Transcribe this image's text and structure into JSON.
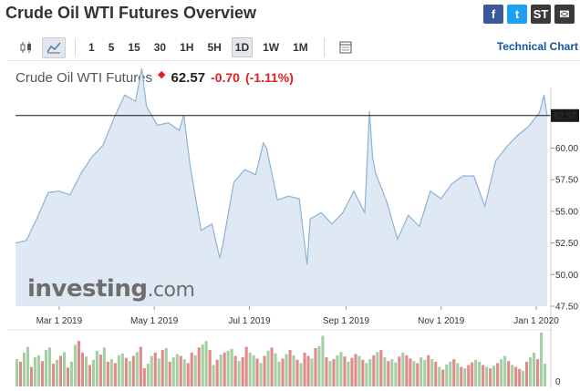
{
  "page": {
    "title": "Crude Oil WTI Futures Overview"
  },
  "social": [
    {
      "name": "facebook-icon",
      "glyph": "f",
      "color": "#3b5998"
    },
    {
      "name": "twitter-icon",
      "glyph": "t",
      "color": "#1da1f2"
    },
    {
      "name": "stocktwits-icon",
      "glyph": "ST",
      "color": "#3a3a3a"
    },
    {
      "name": "email-icon",
      "glyph": "✉",
      "color": "#3a3a3a"
    }
  ],
  "toolbar": {
    "timeframes": [
      "1",
      "5",
      "15",
      "30",
      "1H",
      "5H",
      "1D",
      "1W",
      "1M"
    ],
    "active_timeframe": "1D",
    "technical_link": "Technical Chart"
  },
  "quote": {
    "name": "Crude Oil WTI Futures",
    "price": "62.57",
    "change": "-0.70",
    "change_pct": "(-1.11%)",
    "direction": "down",
    "down_color": "#e02020"
  },
  "watermark": {
    "brand_left": "investing",
    "brand_right": ".com"
  },
  "chart_data": {
    "type": "area",
    "title": "",
    "xlabel": "",
    "ylabel": "",
    "x_range": [
      "2019-02-01",
      "2020-01-08"
    ],
    "x_ticks": [
      {
        "date": "2019-03-01",
        "label": "Mar 1 2019"
      },
      {
        "date": "2019-05-01",
        "label": "May 1 2019"
      },
      {
        "date": "2019-07-01",
        "label": "Jul 1 2019"
      },
      {
        "date": "2019-09-01",
        "label": "Sep 1 2019"
      },
      {
        "date": "2019-11-01",
        "label": "Nov 1 2019"
      },
      {
        "date": "2020-01-01",
        "label": "Jan 1 2020"
      }
    ],
    "ylim": [
      47.5,
      64.5
    ],
    "y_ticks": [
      47.5,
      50,
      52.5,
      55,
      57.5,
      60
    ],
    "last_value": 62.57,
    "last_label": "62.57",
    "line_color": "#8fb2d4",
    "fill_color": "#dfe9f4",
    "series": [
      {
        "x": [
          "2019-02-01",
          "2019-02-08",
          "2019-02-15",
          "2019-02-22",
          "2019-03-01",
          "2019-03-08",
          "2019-03-15",
          "2019-03-22",
          "2019-03-29",
          "2019-04-05",
          "2019-04-12",
          "2019-04-19",
          "2019-04-23",
          "2019-04-26",
          "2019-05-03",
          "2019-05-10",
          "2019-05-17",
          "2019-05-20",
          "2019-05-24",
          "2019-05-31",
          "2019-06-07",
          "2019-06-12",
          "2019-06-14",
          "2019-06-21",
          "2019-06-28",
          "2019-07-05",
          "2019-07-10",
          "2019-07-12",
          "2019-07-19",
          "2019-07-26",
          "2019-08-02",
          "2019-08-07",
          "2019-08-09",
          "2019-08-16",
          "2019-08-23",
          "2019-08-30",
          "2019-09-06",
          "2019-09-13",
          "2019-09-16",
          "2019-09-18",
          "2019-09-20",
          "2019-09-27",
          "2019-10-04",
          "2019-10-11",
          "2019-10-18",
          "2019-10-25",
          "2019-11-01",
          "2019-11-08",
          "2019-11-15",
          "2019-11-22",
          "2019-11-29",
          "2019-12-06",
          "2019-12-13",
          "2019-12-20",
          "2019-12-27",
          "2020-01-03",
          "2020-01-06",
          "2020-01-07",
          "2020-01-08"
        ],
        "values": [
          52.5,
          52.7,
          54.5,
          56.5,
          56.6,
          56.3,
          58.0,
          59.3,
          60.2,
          62.3,
          64.2,
          63.7,
          66.3,
          63.3,
          61.8,
          62.0,
          61.4,
          62.6,
          58.6,
          53.5,
          54.0,
          51.3,
          52.4,
          57.3,
          58.3,
          57.9,
          60.4,
          60.0,
          55.9,
          56.2,
          56.0,
          50.8,
          54.4,
          54.9,
          54.0,
          54.9,
          56.6,
          54.9,
          62.9,
          59.3,
          58.0,
          55.8,
          52.8,
          54.7,
          53.8,
          56.6,
          56.0,
          57.2,
          57.8,
          57.8,
          55.4,
          59.0,
          60.1,
          61.0,
          61.7,
          62.8,
          64.2,
          63.3,
          62.57
        ]
      }
    ],
    "volume": {
      "ylim": [
        0,
        800
      ],
      "y_ticks": [
        0
      ],
      "colors": {
        "up": "#a3cfa3",
        "down": "#e08a8a"
      },
      "values": [
        420,
        380,
        520,
        610,
        300,
        450,
        480,
        390,
        560,
        600,
        350,
        410,
        470,
        530,
        290,
        380,
        640,
        700,
        520,
        460,
        330,
        410,
        550,
        490,
        600,
        380,
        420,
        360,
        480,
        510,
        440,
        390,
        470,
        530,
        610,
        280,
        350,
        470,
        520,
        430,
        560,
        590,
        380,
        450,
        500,
        470,
        420,
        360,
        520,
        480,
        600,
        650,
        700,
        560,
        330,
        410,
        490,
        520,
        550,
        580,
        470,
        390,
        450,
        610,
        520,
        480,
        430,
        360,
        470,
        550,
        600,
        510,
        380,
        430,
        500,
        560,
        480,
        410,
        360,
        520,
        470,
        430,
        590,
        620,
        780,
        450,
        390,
        420,
        480,
        530,
        460,
        380,
        440,
        500,
        470,
        410,
        360,
        420,
        480,
        530,
        560,
        450,
        390,
        420,
        370,
        460,
        520,
        480,
        430,
        390,
        360,
        450,
        410,
        480,
        420,
        380,
        300,
        260,
        340,
        380,
        420,
        360,
        300,
        280,
        330,
        370,
        410,
        380,
        330,
        300,
        280,
        320,
        360,
        420,
        470,
        390,
        330,
        300,
        270,
        240,
        380,
        450,
        520,
        420,
        830,
        350
      ],
      "up": [
        1,
        0,
        1,
        1,
        0,
        1,
        1,
        0,
        1,
        1,
        0,
        1,
        0,
        1,
        0,
        1,
        1,
        0,
        0,
        1,
        0,
        1,
        1,
        0,
        1,
        0,
        1,
        0,
        1,
        1,
        0,
        1,
        0,
        1,
        0,
        0,
        1,
        1,
        0,
        1,
        0,
        1,
        0,
        1,
        1,
        0,
        1,
        0,
        0,
        1,
        0,
        1,
        1,
        0,
        1,
        0,
        1,
        0,
        1,
        1,
        0,
        1,
        0,
        0,
        1,
        1,
        0,
        1,
        0,
        1,
        0,
        1,
        1,
        0,
        1,
        0,
        1,
        0,
        1,
        0,
        0,
        1,
        0,
        1,
        1,
        0,
        1,
        0,
        1,
        1,
        0,
        1,
        0,
        0,
        1,
        0,
        1,
        1,
        0,
        1,
        0,
        1,
        0,
        1,
        1,
        0,
        1,
        0,
        0,
        1,
        0,
        1,
        1,
        0,
        1,
        0,
        1,
        0,
        1,
        1,
        0,
        1,
        0,
        1,
        0,
        0,
        1,
        1,
        0,
        1,
        0,
        1,
        0,
        1,
        1,
        0,
        1,
        0,
        0,
        1,
        0,
        1,
        1,
        0,
        1,
        1
      ]
    }
  }
}
